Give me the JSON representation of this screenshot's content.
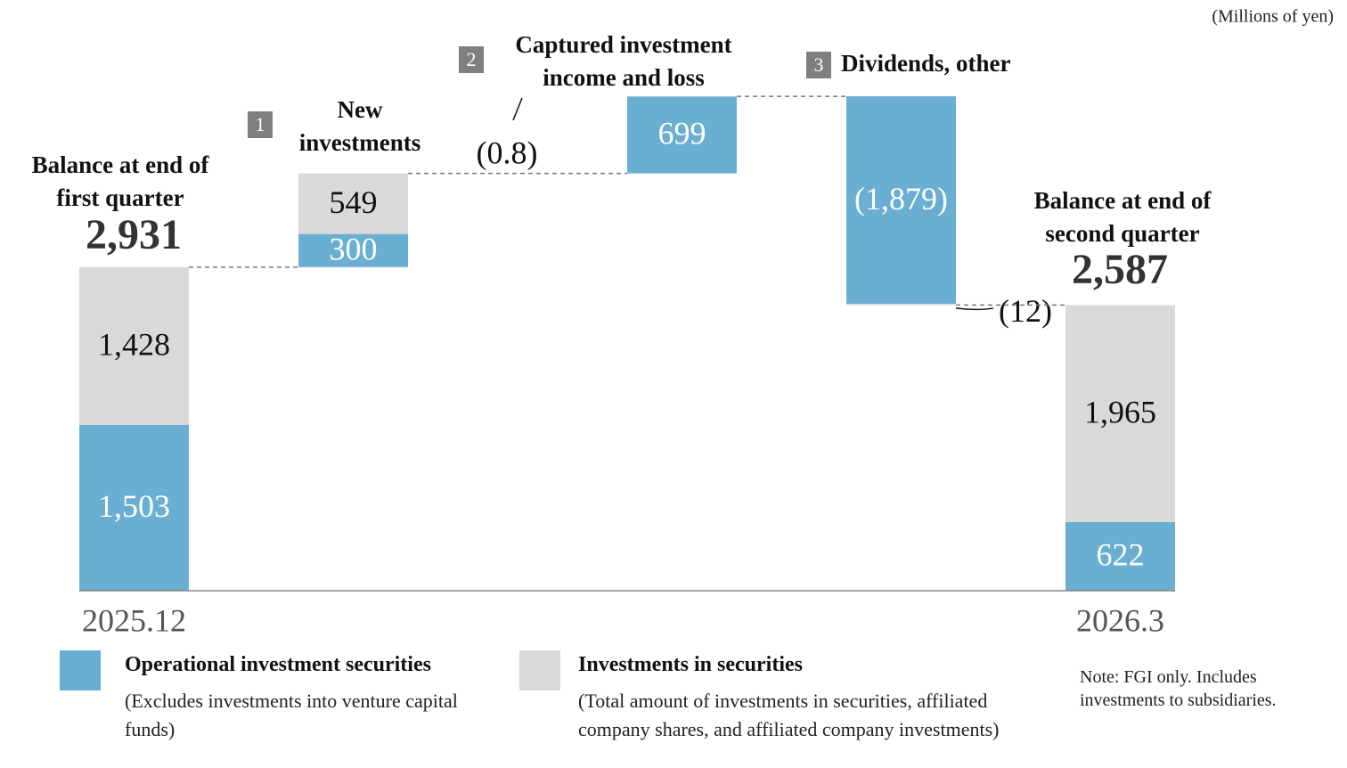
{
  "chart_data": {
    "type": "waterfall",
    "unit": "(Millions of yen)",
    "categories": [
      "2025.12",
      null,
      null,
      null,
      "2026.3"
    ],
    "column_titles": [
      "Balance at end of first quarter",
      "New investments",
      "Captured investment income and loss",
      "Dividends, other",
      "Balance at end of second quarter"
    ],
    "step_numbers": [
      null,
      1,
      2,
      3,
      null
    ],
    "totals": [
      2931,
      null,
      null,
      null,
      2587
    ],
    "total_labels": [
      "2,931",
      null,
      null,
      null,
      "2,587"
    ],
    "series": [
      {
        "name": "Operational investment securities",
        "description": "(Excludes investments into venture capital funds)",
        "color": "#6aafd2",
        "values": [
          1503,
          300,
          699,
          -1879,
          622
        ],
        "value_labels": [
          "1,503",
          "300",
          "699",
          "(1,879)",
          "622"
        ]
      },
      {
        "name": "Investments in securities",
        "description": "(Total amount of investments in securities, affiliated company shares, and affiliated company investments)",
        "color": "#d9d9d9",
        "values": [
          1428,
          549,
          -0.8,
          -12,
          1965
        ],
        "value_labels": [
          "1,428",
          "549",
          "(0.8)",
          "(12)",
          "1,965"
        ]
      }
    ],
    "note": "Note: FGI only. Includes investments to subsidiaries."
  }
}
